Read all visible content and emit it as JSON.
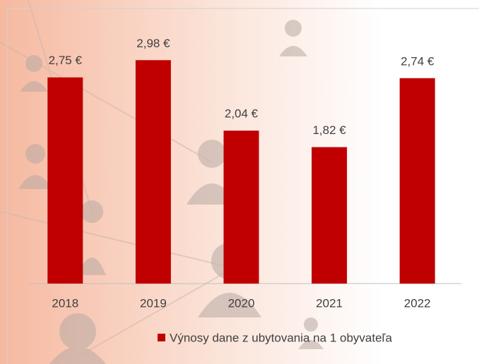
{
  "chart_data": {
    "type": "bar",
    "categories": [
      "2018",
      "2019",
      "2020",
      "2021",
      "2022"
    ],
    "series": [
      {
        "name": "Výnosy dane z ubytovania na 1 obyvateľa",
        "color": "#c00000",
        "values": [
          2.75,
          2.98,
          2.04,
          1.82,
          2.74
        ],
        "value_labels": [
          "2,75 €",
          "2,98 €",
          "2,04 €",
          "1,82 €",
          "2,74 €"
        ]
      }
    ],
    "ylim": [
      0,
      3.5
    ]
  }
}
